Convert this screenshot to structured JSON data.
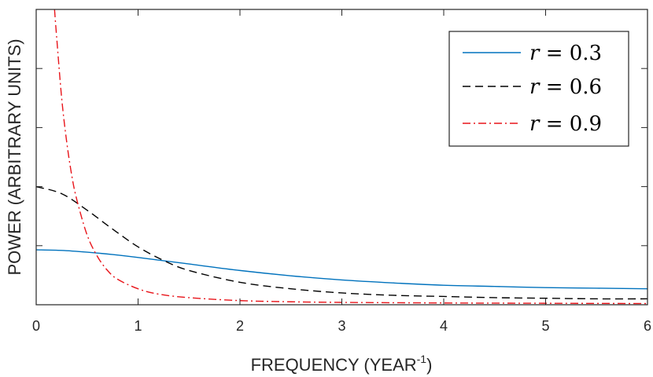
{
  "chart_data": {
    "type": "line",
    "title": "",
    "xlabel": "FREQUENCY (YEAR",
    "xlabel_sup": "-1",
    "xlabel_end": ")",
    "ylabel": "POWER (ARBITRARY UNITS)",
    "xlim": [
      0,
      6
    ],
    "ylim": [
      0,
      5
    ],
    "x_ticks": [
      "0",
      "1",
      "2",
      "3",
      "4",
      "5",
      "6"
    ],
    "y_ticks": [
      1,
      2,
      3,
      4
    ],
    "grid": false,
    "legend_position": "top-right",
    "series": [
      {
        "name": "r = 0.3",
        "legend_var": "r",
        "legend_rest": " = 0.3",
        "color": "#0072BD",
        "dash": "solid",
        "x": [
          0,
          0.25,
          0.5,
          0.75,
          1,
          1.5,
          2,
          2.5,
          3,
          3.5,
          4,
          4.5,
          5,
          5.5,
          6
        ],
        "y": [
          0.93,
          0.92,
          0.89,
          0.85,
          0.8,
          0.69,
          0.58,
          0.49,
          0.42,
          0.37,
          0.33,
          0.31,
          0.29,
          0.28,
          0.27
        ]
      },
      {
        "name": "r = 0.6",
        "legend_var": "r",
        "legend_rest": " = 0.6",
        "color": "#000000",
        "dash": "dashed",
        "x": [
          0,
          0.25,
          0.5,
          0.75,
          1,
          1.25,
          1.5,
          2,
          2.5,
          3,
          3.5,
          4,
          4.5,
          5,
          5.5,
          6
        ],
        "y": [
          2.0,
          1.88,
          1.6,
          1.28,
          0.98,
          0.75,
          0.58,
          0.38,
          0.27,
          0.2,
          0.16,
          0.14,
          0.12,
          0.11,
          0.1,
          0.1
        ]
      },
      {
        "name": "r = 0.9",
        "legend_var": "r",
        "legend_rest": " = 0.9",
        "color": "#E8141A",
        "dash": "dashdot",
        "x": [
          0.18,
          0.2,
          0.25,
          0.3,
          0.35,
          0.4,
          0.5,
          0.6,
          0.7,
          0.8,
          1,
          1.2,
          1.5,
          2,
          2.5,
          3,
          4,
          5,
          6
        ],
        "y": [
          5.0,
          4.55,
          3.5,
          2.75,
          2.18,
          1.77,
          1.18,
          0.82,
          0.58,
          0.43,
          0.27,
          0.18,
          0.12,
          0.07,
          0.05,
          0.04,
          0.03,
          0.025,
          0.02
        ]
      }
    ]
  }
}
